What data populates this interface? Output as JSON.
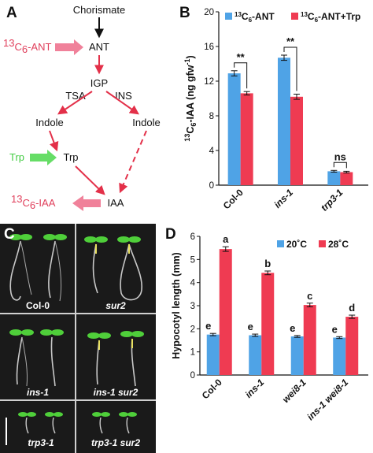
{
  "panels": {
    "a": {
      "letter": "A",
      "nodes": {
        "chorismate": "Chorismate",
        "ant": "ANT",
        "igp": "IGP",
        "tsa": "TSA",
        "ins": "INS",
        "indole_left": "Indole",
        "indole_right": "Indole",
        "trp": "Trp",
        "iaa": "IAA"
      },
      "inputs": {
        "ant_label": "C",
        "ant_sub": "6",
        "ant_sup": "13",
        "ant_suffix": "-ANT",
        "trp_label": "Trp",
        "iaa_label": "C",
        "iaa_sub": "6",
        "iaa_sup": "13",
        "iaa_suffix": "-IAA"
      },
      "colors": {
        "pathway": "#e33049",
        "ant_arrow": "#f0819a",
        "trp_arrow": "#66dd66"
      }
    },
    "b": {
      "letter": "B"
    },
    "c": {
      "letter": "C",
      "labels": [
        "Col-0",
        "sur2",
        "ins-1",
        "ins-1 sur2",
        "trp3-1",
        "trp3-1 sur2"
      ]
    },
    "d": {
      "letter": "D"
    }
  },
  "chart_data": [
    {
      "panel": "B",
      "type": "bar",
      "categories": [
        "Col-0",
        "ins-1",
        "trp3-1"
      ],
      "series": [
        {
          "name": "C6-ANT",
          "legend_main": "C",
          "legend_sup": "13",
          "legend_sub": "6",
          "legend_suffix": "-ANT",
          "color": "#4fa3e6",
          "values": [
            12.9,
            14.7,
            1.6
          ],
          "errors": [
            0.3,
            0.3,
            0.1
          ]
        },
        {
          "name": "C6-ANT+Trp",
          "legend_main": "C",
          "legend_sup": "13",
          "legend_sub": "6",
          "legend_suffix": "-ANT+Trp",
          "color": "#ef3b52",
          "values": [
            10.6,
            10.2,
            1.5
          ],
          "errors": [
            0.2,
            0.3,
            0.1
          ]
        }
      ],
      "ylabel_sup": "13",
      "ylabel_main": "C",
      "ylabel_sub": "6",
      "ylabel_rest": "-IAA (ng gfw",
      "ylabel_sup2": "-1",
      "ylabel_end": ")",
      "ylim": [
        0,
        20
      ],
      "yticks": [
        "0",
        "4",
        "8",
        "12",
        "16",
        "20"
      ],
      "significance": [
        "**",
        "**",
        "ns"
      ]
    },
    {
      "panel": "D",
      "type": "bar",
      "categories": [
        "Col-0",
        "ins-1",
        "wei8-1",
        "ins-1 wei8-1"
      ],
      "series": [
        {
          "name": "20˚C",
          "color": "#4fa3e6",
          "values": [
            1.75,
            1.72,
            1.67,
            1.62
          ],
          "errors": [
            0.05,
            0.05,
            0.04,
            0.04
          ],
          "letters": [
            "e",
            "e",
            "e",
            "e"
          ]
        },
        {
          "name": "28˚C",
          "color": "#ef3b52",
          "values": [
            5.45,
            4.42,
            3.03,
            2.52
          ],
          "errors": [
            0.1,
            0.08,
            0.08,
            0.07
          ],
          "letters": [
            "a",
            "b",
            "c",
            "d"
          ]
        }
      ],
      "ylabel": "Hypocotyl length (mm)",
      "ylim": [
        0,
        6
      ],
      "yticks": [
        "0",
        "1",
        "2",
        "3",
        "4",
        "5",
        "6"
      ]
    }
  ]
}
